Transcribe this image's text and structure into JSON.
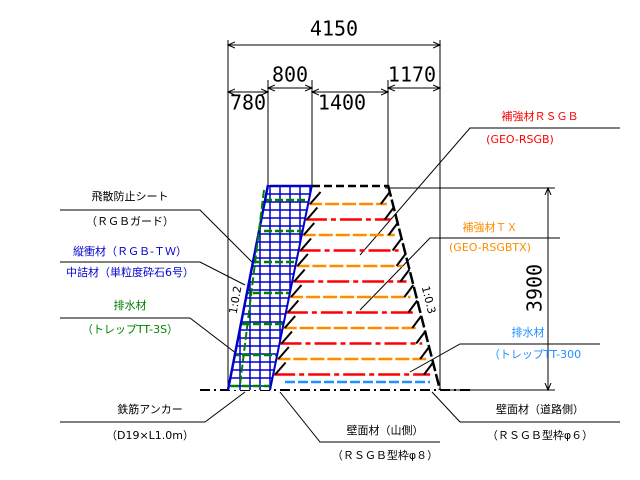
{
  "dimensions": {
    "total": "4150",
    "upper_left": "800",
    "upper_right": "1170",
    "lower_left": "780",
    "lower_mid": "1400",
    "height": "3900"
  },
  "slopes": {
    "left": "1:0.2",
    "right": "1:0.3"
  },
  "labels": {
    "sheet": "飛散防止シート",
    "sheet_sub": "（ＲＧＢガード）",
    "vertical_material": "縦衝材（ＲＧＢ-ＴＷ）",
    "fill_material": "中詰材（単粒度砕石6号）",
    "drain_left": "排水材",
    "drain_left_sub": "（トレップTT-3S）",
    "anchor": "鉄筋アンカー",
    "anchor_sub": "（D19×L1.0m）",
    "wall_mountain": "壁面材（山側）",
    "wall_mountain_sub": "（ＲＳＧＢ型枠φ８）",
    "reinforce_rsgb": "補強材ＲＳＧＢ",
    "reinforce_rsgb_sub": "(GEO-RSGB)",
    "reinforce_tx": "補強材ＴＸ",
    "reinforce_tx_sub": "(GEO-RSGBTX)",
    "drain_right": "排水材",
    "drain_right_sub": "（トレップTT-300",
    "wall_road": "壁面材（道路側）",
    "wall_road_sub": "（ＲＳＧＢ型枠φ６）"
  }
}
